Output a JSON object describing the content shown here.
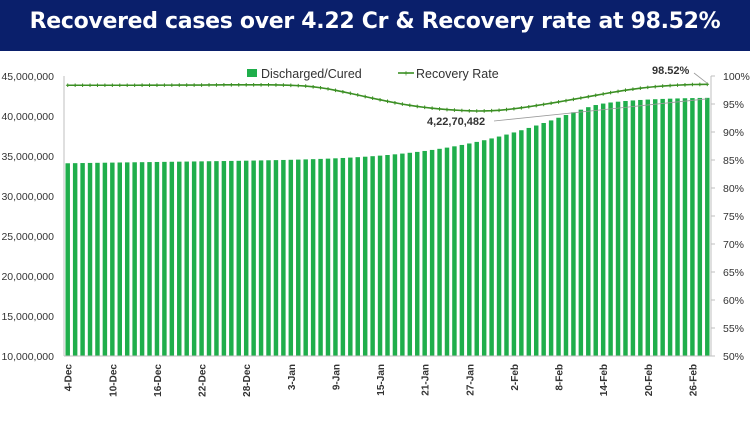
{
  "header": {
    "title": "Recovered cases over 4.22 Cr & Recovery rate at 98.52%",
    "background": "#0a1f6b"
  },
  "chart_data": {
    "type": "bar",
    "series": [
      {
        "name": "Discharged/Cured",
        "kind": "bar",
        "axis": "left",
        "color": "#1fae4b",
        "values": [
          34091030,
          34105214,
          34119795,
          34133945,
          34147876,
          34161632,
          34175139,
          34188461,
          34201530,
          34214518,
          34227530,
          34240603,
          34253518,
          34266246,
          34278857,
          34291443,
          34304166,
          34317117,
          34330269,
          34343642,
          34357243,
          34371168,
          34385474,
          34400195,
          34415521,
          34431540,
          34448319,
          34465999,
          34484726,
          34504638,
          34526159,
          34549839,
          34575855,
          34604548,
          34636288,
          34671460,
          34710442,
          34753589,
          34801315,
          34854020,
          34912153,
          34976175,
          35046598,
          35123910,
          35208618,
          35301182,
          35402071,
          35511735,
          35630660,
          35759327,
          35898202,
          36047745,
          36208434,
          36380740,
          36565113,
          36761963,
          36971665,
          37194614,
          37430897,
          37680510,
          37943397,
          38219435,
          38508345,
          38809736,
          39123138,
          39447902,
          39782977,
          40122893,
          40462810,
          40793773,
          41103800,
          41371150,
          41555012,
          41687006,
          41790033,
          41874018,
          41943906,
          42003208,
          42053934,
          42097452,
          42134962,
          42167350,
          42195314,
          42219488,
          42240431,
          42258614,
          42270482
        ]
      },
      {
        "name": "Recovery Rate",
        "kind": "line",
        "axis": "right",
        "color": "#3b8f23",
        "values": [
          98.35,
          98.35,
          98.35,
          98.35,
          98.35,
          98.35,
          98.35,
          98.35,
          98.35,
          98.35,
          98.36,
          98.36,
          98.36,
          98.37,
          98.37,
          98.38,
          98.38,
          98.39,
          98.39,
          98.4,
          98.41,
          98.42,
          98.42,
          98.43,
          98.43,
          98.43,
          98.43,
          98.42,
          98.41,
          98.38,
          98.34,
          98.28,
          98.2,
          98.07,
          97.9,
          97.7,
          97.45,
          97.18,
          96.9,
          96.61,
          96.32,
          96.03,
          95.75,
          95.48,
          95.22,
          94.98,
          94.76,
          94.57,
          94.4,
          94.25,
          94.12,
          94.01,
          93.92,
          93.84,
          93.78,
          93.75,
          93.76,
          93.8,
          93.88,
          94.0,
          94.15,
          94.32,
          94.51,
          94.72,
          94.93,
          95.15,
          95.37,
          95.6,
          95.83,
          96.07,
          96.31,
          96.55,
          96.79,
          97.03,
          97.25,
          97.46,
          97.65,
          97.82,
          97.97,
          98.1,
          98.21,
          98.3,
          98.37,
          98.43,
          98.48,
          98.5,
          98.52
        ]
      }
    ],
    "x_ticks": [
      "4-Dec",
      "10-Dec",
      "16-Dec",
      "22-Dec",
      "28-Dec",
      "3-Jan",
      "9-Jan",
      "15-Jan",
      "21-Jan",
      "27-Jan",
      "2-Feb",
      "8-Feb",
      "14-Feb",
      "20-Feb",
      "26-Feb"
    ],
    "tick_every": 6,
    "y_left": {
      "min": 10000000,
      "max": 45000000,
      "step": 5000000,
      "ticks": [
        "10,000,000",
        "15,000,000",
        "20,000,000",
        "25,000,000",
        "30,000,000",
        "35,000,000",
        "40,000,000",
        "45,000,000"
      ]
    },
    "y_right": {
      "min": 50,
      "max": 100,
      "step": 5,
      "ticks": [
        "50%",
        "55%",
        "60%",
        "65%",
        "70%",
        "75%",
        "80%",
        "85%",
        "90%",
        "95%",
        "100%"
      ]
    },
    "legend_position": "top-center",
    "annotations": {
      "cases_label": "4,22,70,482",
      "rate_label": "98.52%"
    },
    "grid": false
  }
}
